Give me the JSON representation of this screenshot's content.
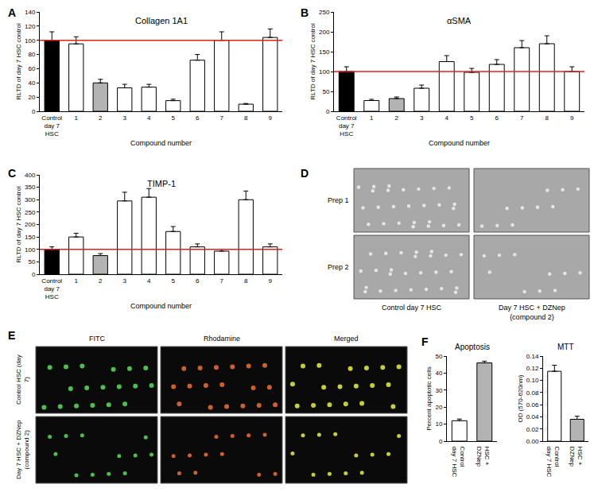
{
  "chart_data": [
    {
      "type": "bar",
      "panel": "A",
      "title": "Collagen 1A1",
      "xlabel": "Compound number",
      "ylabel": "RLTD of day 7 HSC control",
      "categories": [
        "Control day 7 HSC",
        "1",
        "2",
        "3",
        "4",
        "5",
        "6",
        "7",
        "8",
        "9"
      ],
      "values": [
        100,
        95,
        40,
        33,
        34,
        15,
        72,
        100,
        10,
        104
      ],
      "errors": [
        12,
        10,
        5,
        5,
        4,
        2,
        8,
        12,
        1,
        12
      ],
      "colors": [
        "#000000",
        "#ffffff",
        "#b3b3b3",
        "#ffffff",
        "#ffffff",
        "#ffffff",
        "#ffffff",
        "#ffffff",
        "#ffffff",
        "#ffffff"
      ],
      "ylim": [
        0,
        140
      ],
      "yticks": [
        0,
        20,
        40,
        60,
        80,
        100,
        120,
        140
      ],
      "reference_line": {
        "value": 100,
        "color": "#e0201b"
      },
      "grid": false
    },
    {
      "type": "bar",
      "panel": "B",
      "title": "αSMA",
      "xlabel": "Compound number",
      "ylabel": "RLTD of day 7 HSC control",
      "categories": [
        "Control day 7 HSC",
        "1",
        "2",
        "3",
        "4",
        "5",
        "6",
        "7",
        "8",
        "9"
      ],
      "values": [
        100,
        27,
        32,
        58,
        125,
        98,
        118,
        160,
        170,
        100
      ],
      "errors": [
        12,
        3,
        4,
        8,
        15,
        10,
        12,
        18,
        20,
        12
      ],
      "colors": [
        "#000000",
        "#ffffff",
        "#b3b3b3",
        "#ffffff",
        "#ffffff",
        "#ffffff",
        "#ffffff",
        "#ffffff",
        "#ffffff",
        "#ffffff"
      ],
      "ylim": [
        0,
        250
      ],
      "yticks": [
        0,
        50,
        100,
        150,
        200,
        250
      ],
      "reference_line": {
        "value": 100,
        "color": "#e0201b"
      },
      "grid": false
    },
    {
      "type": "bar",
      "panel": "C",
      "title": "TIMP-1",
      "xlabel": "Compound number",
      "ylabel": "RLTD of day 7 HSC control",
      "categories": [
        "Control day 7 HSC",
        "1",
        "2",
        "3",
        "4",
        "5",
        "6",
        "7",
        "8",
        "9"
      ],
      "values": [
        100,
        150,
        75,
        295,
        310,
        172,
        110,
        93,
        300,
        110
      ],
      "errors": [
        10,
        15,
        8,
        35,
        35,
        20,
        12,
        8,
        35,
        12
      ],
      "colors": [
        "#000000",
        "#ffffff",
        "#b3b3b3",
        "#ffffff",
        "#ffffff",
        "#ffffff",
        "#ffffff",
        "#ffffff",
        "#ffffff",
        "#ffffff"
      ],
      "ylim": [
        0,
        400
      ],
      "yticks": [
        0,
        50,
        100,
        150,
        200,
        250,
        300,
        350,
        400
      ],
      "reference_line": {
        "value": 100,
        "color": "#e0201b"
      },
      "grid": false
    },
    {
      "type": "bar",
      "panel": "F",
      "title": "Apoptosis",
      "ylabel": "Percent apoptotic cells",
      "categories": [
        "Control day 7 HSC",
        "HSC + DZNep"
      ],
      "values": [
        12,
        46
      ],
      "errors": [
        1,
        1
      ],
      "colors": [
        "#ffffff",
        "#b3b3b3"
      ],
      "ylim": [
        0,
        50
      ],
      "yticks": [
        0,
        10,
        20,
        30,
        40,
        50
      ],
      "grid": false
    },
    {
      "type": "bar",
      "title": "MTT",
      "ylabel": "OD (570-620nm)",
      "categories": [
        "Control day 7 HSC",
        "HSC + DZNep"
      ],
      "values": [
        0.115,
        0.036
      ],
      "errors": [
        0.01,
        0.005
      ],
      "colors": [
        "#ffffff",
        "#b3b3b3"
      ],
      "ylim": [
        0,
        0.14
      ],
      "yticks": [
        {
          "value": 0,
          "label": "0.00"
        },
        {
          "value": 0.02,
          "label": "0.02"
        },
        {
          "value": 0.04,
          "label": "0.04"
        },
        {
          "value": 0.06,
          "label": "0.06"
        },
        {
          "value": 0.08,
          "label": "0.08"
        },
        {
          "value": 0.1,
          "label": "0.10"
        },
        {
          "value": 0.12,
          "label": "0.12"
        },
        {
          "value": 0.14,
          "label": "0.14"
        }
      ],
      "grid": false
    }
  ],
  "image_panels": [
    {
      "panel": "D",
      "row_labels": [
        "Prep 1",
        "Prep 2"
      ],
      "column_labels": [
        "Control day 7 HSC",
        "Day 7 HSC + DZNep (compound 2)"
      ]
    },
    {
      "panel": "E",
      "row_labels": [
        "Control HSC (day 7)",
        "Day 7 HSC + DZNep (compound 2)"
      ],
      "column_labels": [
        "FITC",
        "Rhodamine",
        "Merged"
      ]
    }
  ]
}
